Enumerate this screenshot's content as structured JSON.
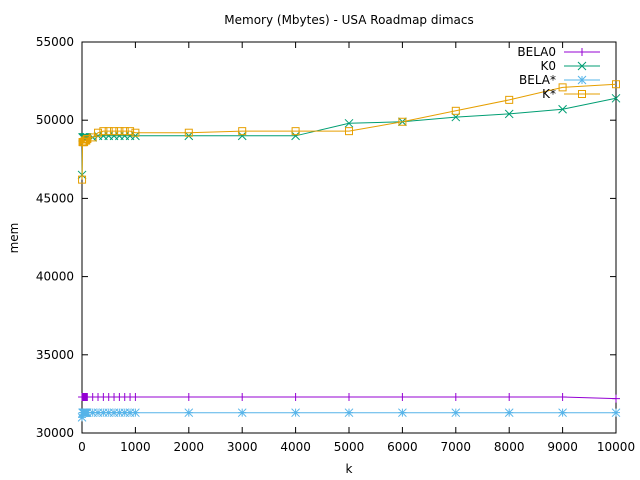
{
  "chart_data": {
    "type": "line",
    "title": "Memory (Mbytes) - USA Roadmap dimacs",
    "xlabel": "k",
    "ylabel": "mem",
    "xlim": [
      0,
      10000
    ],
    "ylim": [
      30000,
      55000
    ],
    "xticks": [
      0,
      1000,
      2000,
      3000,
      4000,
      5000,
      6000,
      7000,
      8000,
      9000,
      10000
    ],
    "yticks": [
      30000,
      35000,
      40000,
      45000,
      50000,
      55000
    ],
    "grid": false,
    "legend_position": "top-right",
    "series": [
      {
        "name": "BELA0",
        "color": "#9400d3",
        "marker": "plus",
        "x": [
          1,
          10,
          20,
          30,
          40,
          50,
          60,
          70,
          80,
          90,
          100,
          200,
          300,
          400,
          500,
          600,
          700,
          800,
          900,
          1000,
          2000,
          3000,
          4000,
          5000,
          6000,
          7000,
          8000,
          9000,
          10000
        ],
        "y": [
          32300,
          32300,
          32300,
          32300,
          32300,
          32300,
          32300,
          32300,
          32300,
          32300,
          32300,
          32300,
          32300,
          32300,
          32300,
          32300,
          32300,
          32300,
          32300,
          32300,
          32300,
          32300,
          32300,
          32300,
          32300,
          32300,
          32300,
          32300,
          32200
        ]
      },
      {
        "name": "K0",
        "color": "#009e73",
        "marker": "cross",
        "x": [
          1,
          10,
          20,
          30,
          40,
          50,
          60,
          70,
          80,
          90,
          100,
          200,
          300,
          400,
          500,
          600,
          700,
          800,
          900,
          1000,
          2000,
          3000,
          4000,
          5000,
          6000,
          7000,
          8000,
          9000,
          10000
        ],
        "y": [
          46500,
          48900,
          48900,
          48900,
          48900,
          48900,
          48900,
          48900,
          48900,
          48900,
          48900,
          48900,
          49000,
          49000,
          49000,
          49000,
          49000,
          49000,
          49000,
          49000,
          49000,
          49000,
          49000,
          49800,
          49900,
          50200,
          50400,
          50700,
          51400
        ]
      },
      {
        "name": "BELA*",
        "color": "#56b4e9",
        "marker": "star",
        "x": [
          1,
          10,
          20,
          30,
          40,
          50,
          60,
          70,
          80,
          90,
          100,
          200,
          300,
          400,
          500,
          600,
          700,
          800,
          900,
          1000,
          2000,
          3000,
          4000,
          5000,
          6000,
          7000,
          8000,
          9000,
          10000
        ],
        "y": [
          31000,
          31300,
          31300,
          31300,
          31300,
          31300,
          31300,
          31300,
          31300,
          31300,
          31300,
          31300,
          31300,
          31300,
          31300,
          31300,
          31300,
          31300,
          31300,
          31300,
          31300,
          31300,
          31300,
          31300,
          31300,
          31300,
          31300,
          31300,
          31300
        ]
      },
      {
        "name": "K*",
        "color": "#e69f00",
        "marker": "square",
        "x": [
          1,
          10,
          20,
          30,
          40,
          50,
          60,
          70,
          80,
          90,
          100,
          200,
          300,
          400,
          500,
          600,
          700,
          800,
          900,
          1000,
          2000,
          3000,
          4000,
          5000,
          6000,
          7000,
          8000,
          9000,
          10000
        ],
        "y": [
          46200,
          48600,
          48600,
          48600,
          48600,
          48700,
          48700,
          48700,
          48700,
          48800,
          48800,
          48900,
          49200,
          49300,
          49300,
          49300,
          49300,
          49300,
          49300,
          49200,
          49200,
          49300,
          49300,
          49300,
          49900,
          50600,
          51300,
          52100,
          52300
        ]
      }
    ]
  }
}
